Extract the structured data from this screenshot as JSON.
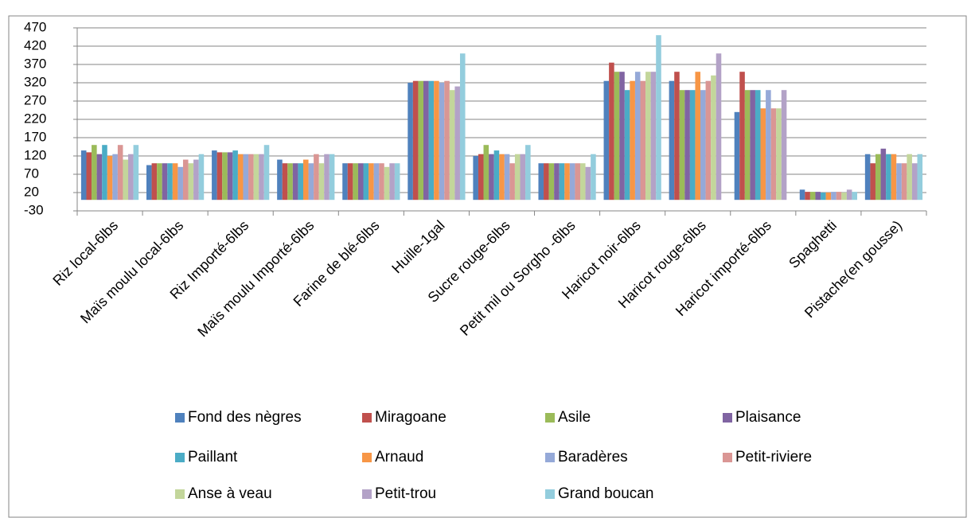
{
  "chart_data": {
    "type": "bar",
    "categories": [
      "Riz local-6lbs",
      "Maïs moulu local-6lbs",
      "Riz Importé-6lbs",
      "Maïs moulu Importé-6lbs",
      "Farine de blé-6lbs",
      "Huille-1gal",
      "Sucre rouge-6lbs",
      "Petit mil ou Sorgho -6lbs",
      "Haricot noir-6lbs",
      "Haricot rouge-6lbs",
      "Haricot importé-6lbs",
      "Spaghetti",
      "Pistache(en gousse)"
    ],
    "series": [
      {
        "name": "Fond des nègres",
        "color": "#4F81BD",
        "values": [
          135,
          95,
          135,
          110,
          100,
          320,
          120,
          100,
          325,
          325,
          240,
          28,
          125
        ]
      },
      {
        "name": "Miragoane",
        "color": "#C0504D",
        "values": [
          130,
          100,
          130,
          100,
          100,
          325,
          125,
          100,
          375,
          350,
          350,
          22,
          100
        ]
      },
      {
        "name": "Asile",
        "color": "#9BBB59",
        "values": [
          150,
          100,
          130,
          100,
          100,
          325,
          150,
          100,
          350,
          300,
          300,
          22,
          125
        ]
      },
      {
        "name": "Plaisance",
        "color": "#8064A2",
        "values": [
          125,
          100,
          130,
          100,
          100,
          325,
          125,
          100,
          350,
          300,
          300,
          22,
          140
        ]
      },
      {
        "name": "Paillant",
        "color": "#4BACC6",
        "values": [
          150,
          100,
          135,
          100,
          100,
          325,
          135,
          100,
          300,
          300,
          300,
          20,
          125
        ]
      },
      {
        "name": "Arnaud",
        "color": "#F79646",
        "values": [
          120,
          100,
          125,
          110,
          100,
          325,
          125,
          100,
          325,
          350,
          250,
          20,
          125
        ]
      },
      {
        "name": "Baradères",
        "color": "#95A9D8",
        "values": [
          125,
          90,
          125,
          100,
          100,
          320,
          125,
          100,
          350,
          300,
          300,
          22,
          100
        ]
      },
      {
        "name": "Petit-riviere",
        "color": "#DA9694",
        "values": [
          150,
          110,
          125,
          125,
          100,
          325,
          100,
          100,
          325,
          325,
          250,
          22,
          100
        ]
      },
      {
        "name": "Anse à veau",
        "color": "#C3D69B",
        "values": [
          110,
          100,
          125,
          100,
          90,
          300,
          125,
          100,
          350,
          340,
          250,
          20,
          125
        ]
      },
      {
        "name": "Petit-trou",
        "color": "#B3A2C7",
        "values": [
          125,
          110,
          125,
          125,
          100,
          310,
          125,
          90,
          350,
          400,
          300,
          28,
          100
        ]
      },
      {
        "name": "Grand boucan",
        "color": "#93CDDD",
        "values": [
          150,
          125,
          150,
          125,
          100,
          400,
          150,
          125,
          450,
          null,
          null,
          22,
          125
        ]
      }
    ],
    "ylim": [
      -30,
      470
    ],
    "yticks": [
      -30,
      20,
      70,
      120,
      170,
      220,
      270,
      320,
      370,
      420,
      470
    ],
    "grid": true
  }
}
